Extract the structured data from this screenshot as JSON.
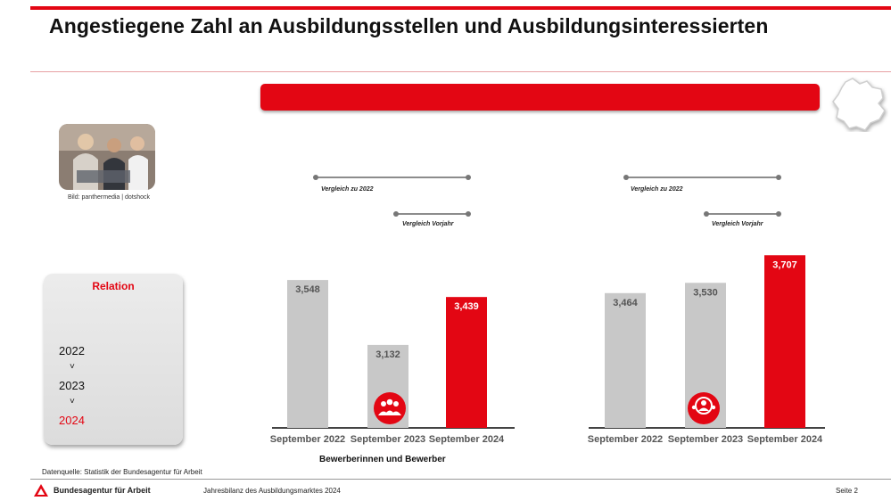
{
  "title": "Angestiegene Zahl an Ausbildungsstellen und Ausbildungsinteressierten",
  "photo_credit": "Bild: panthermedia | dotshock",
  "relation": {
    "title": "Relation",
    "years": [
      "2022",
      "2023",
      "2024"
    ],
    "chevron": "˅"
  },
  "comparison_labels": {
    "vs_2022": "Vergleich zu 2022",
    "vs_prev": "Vergleich Vorjahr"
  },
  "source": "Datenquelle: Statistik der Bundesagentur für Arbeit",
  "footer": {
    "org": "Bundesagentur für Arbeit",
    "report": "Jahresbilanz des Ausbildungsmarktes 2024",
    "page": "Seite 2"
  },
  "colors": {
    "accent": "#e30613",
    "bar_grey": "#c8c8c8"
  },
  "icons": [
    "people-group-icon",
    "person-search-icon"
  ],
  "chart_data": [
    {
      "type": "bar",
      "categories": [
        "September 2022",
        "September 2023",
        "September 2024"
      ],
      "values": [
        3548,
        3132,
        3439
      ],
      "value_labels": [
        "3,548",
        "3,132",
        "3,439"
      ],
      "highlight_index": 2,
      "xlabel": "Bewerberinnen und Bewerber",
      "ylim": [
        2600,
        3800
      ]
    },
    {
      "type": "bar",
      "categories": [
        "September 2022",
        "September 2023",
        "September 2024"
      ],
      "values": [
        3464,
        3530,
        3707
      ],
      "value_labels": [
        "3,464",
        "3,530",
        "3,707"
      ],
      "highlight_index": 2,
      "xlabel": "",
      "ylim": [
        2600,
        3800
      ]
    }
  ]
}
